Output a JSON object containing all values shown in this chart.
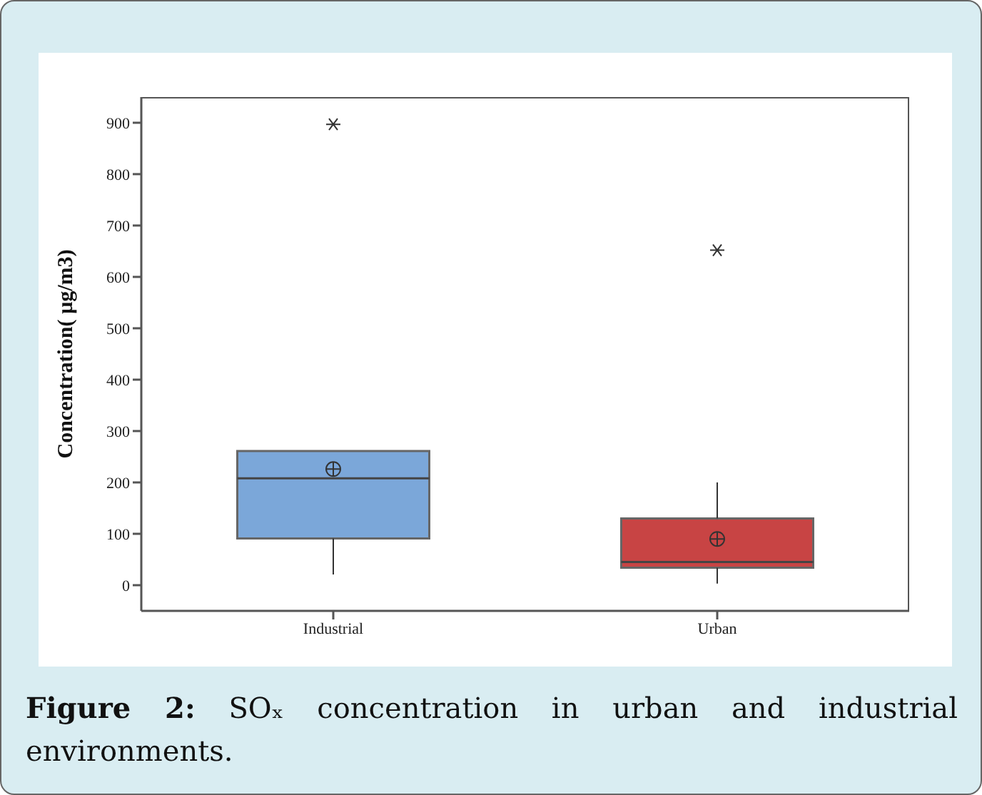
{
  "chart_data": {
    "type": "box",
    "title": "Figure 2: SOₓ concentration in urban and industrial environments.",
    "ylabel": "Concentration( µg/m3)",
    "categories": [
      "Industrial",
      "Urban"
    ],
    "colors": [
      "#7ba7d9",
      "#c84444"
    ],
    "boxes": [
      {
        "low": 21,
        "q1": 91,
        "median": 208,
        "q3": 261,
        "high": 261,
        "mean": 226,
        "outliers": [
          897
        ]
      },
      {
        "low": 3,
        "q1": 34,
        "median": 45,
        "q3": 130,
        "high": 200,
        "mean": 90,
        "outliers": [
          652
        ]
      }
    ],
    "ylim": [
      -50,
      950
    ],
    "yticks": [
      0,
      100,
      200,
      300,
      400,
      500,
      600,
      700,
      800,
      900
    ]
  }
}
